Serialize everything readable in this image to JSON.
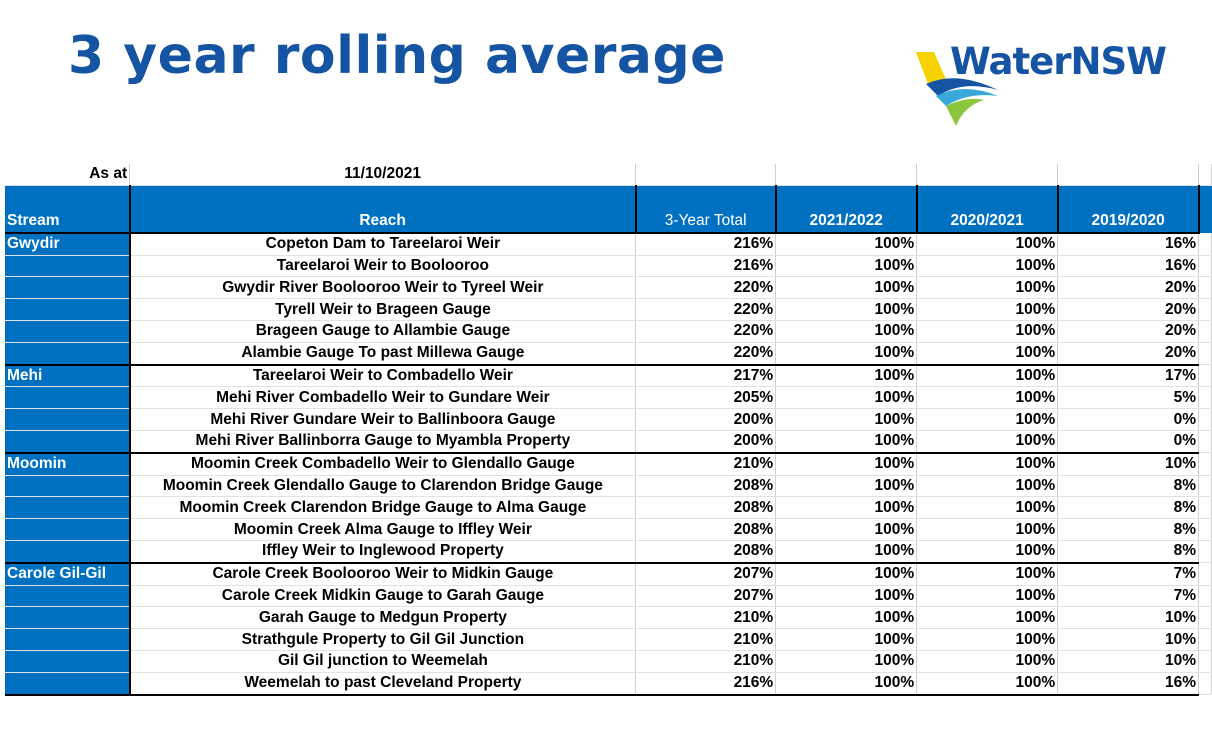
{
  "title": "3 year rolling average",
  "logo": {
    "text": "WaterNSW",
    "colors": {
      "yellow": "#f5d200",
      "blue": "#1553a3",
      "teal": "#39a9dc",
      "green": "#8cc63f"
    }
  },
  "as_at": {
    "label": "As at",
    "date": "11/10/2021"
  },
  "headers": {
    "stream": "Stream",
    "reach": "Reach",
    "total": "3-Year Total",
    "y1": "2021/2022",
    "y2": "2020/2021",
    "y3": "2019/2020"
  },
  "colors": {
    "header_blue": "#0070c0",
    "title_blue": "#1553a3"
  },
  "groups": [
    {
      "stream": "Gwydir",
      "rows": [
        {
          "reach": "Copeton Dam to Tareelaroi Weir",
          "total": "216%",
          "y1": "100%",
          "y2": "100%",
          "y3": "16%"
        },
        {
          "reach": "Tareelaroi Weir to Boolooroo",
          "total": "216%",
          "y1": "100%",
          "y2": "100%",
          "y3": "16%"
        },
        {
          "reach": "Gwydir River Boolooroo Weir to Tyreel Weir",
          "total": "220%",
          "y1": "100%",
          "y2": "100%",
          "y3": "20%"
        },
        {
          "reach": "Tyrell Weir to Brageen Gauge",
          "total": "220%",
          "y1": "100%",
          "y2": "100%",
          "y3": "20%"
        },
        {
          "reach": "Brageen Gauge to Allambie Gauge",
          "total": "220%",
          "y1": "100%",
          "y2": "100%",
          "y3": "20%"
        },
        {
          "reach": "Alambie Gauge To past Millewa Gauge",
          "total": "220%",
          "y1": "100%",
          "y2": "100%",
          "y3": "20%"
        }
      ]
    },
    {
      "stream": "Mehi",
      "rows": [
        {
          "reach": "Tareelaroi Weir to Combadello Weir",
          "total": "217%",
          "y1": "100%",
          "y2": "100%",
          "y3": "17%"
        },
        {
          "reach": "Mehi River Combadello Weir to Gundare Weir",
          "total": "205%",
          "y1": "100%",
          "y2": "100%",
          "y3": "5%"
        },
        {
          "reach": "Mehi River Gundare Weir to Ballinboora Gauge",
          "total": "200%",
          "y1": "100%",
          "y2": "100%",
          "y3": "0%"
        },
        {
          "reach": "Mehi River Ballinborra Gauge  to Myambla Property",
          "total": "200%",
          "y1": "100%",
          "y2": "100%",
          "y3": "0%"
        }
      ]
    },
    {
      "stream": "Moomin",
      "rows": [
        {
          "reach": "Moomin Creek Combadello Weir  to Glendallo Gauge",
          "total": "210%",
          "y1": "100%",
          "y2": "100%",
          "y3": "10%"
        },
        {
          "reach": "Moomin Creek Glendallo Gauge to Clarendon Bridge Gauge",
          "total": "208%",
          "y1": "100%",
          "y2": "100%",
          "y3": "8%"
        },
        {
          "reach": "Moomin Creek Clarendon Bridge Gauge  to Alma Gauge",
          "total": "208%",
          "y1": "100%",
          "y2": "100%",
          "y3": "8%"
        },
        {
          "reach": "Moomin Creek Alma Gauge  to Iffley Weir",
          "total": "208%",
          "y1": "100%",
          "y2": "100%",
          "y3": "8%"
        },
        {
          "reach": "Iffley Weir to Inglewood Property",
          "total": "208%",
          "y1": "100%",
          "y2": "100%",
          "y3": "8%"
        }
      ]
    },
    {
      "stream": "Carole Gil-Gil",
      "rows": [
        {
          "reach": "Carole Creek Boolooroo Weir  to Midkin Gauge",
          "total": "207%",
          "y1": "100%",
          "y2": "100%",
          "y3": "7%"
        },
        {
          "reach": "Carole Creek Midkin Gauge to Garah Gauge",
          "total": "207%",
          "y1": "100%",
          "y2": "100%",
          "y3": "7%"
        },
        {
          "reach": "Garah Gauge to Medgun Property",
          "total": "210%",
          "y1": "100%",
          "y2": "100%",
          "y3": "10%"
        },
        {
          "reach": "Strathgule Property to Gil Gil Junction",
          "total": "210%",
          "y1": "100%",
          "y2": "100%",
          "y3": "10%"
        },
        {
          "reach": "Gil Gil junction to Weemelah",
          "total": "210%",
          "y1": "100%",
          "y2": "100%",
          "y3": "10%"
        },
        {
          "reach": "Weemelah to past Cleveland Property",
          "total": "216%",
          "y1": "100%",
          "y2": "100%",
          "y3": "16%"
        }
      ]
    }
  ]
}
